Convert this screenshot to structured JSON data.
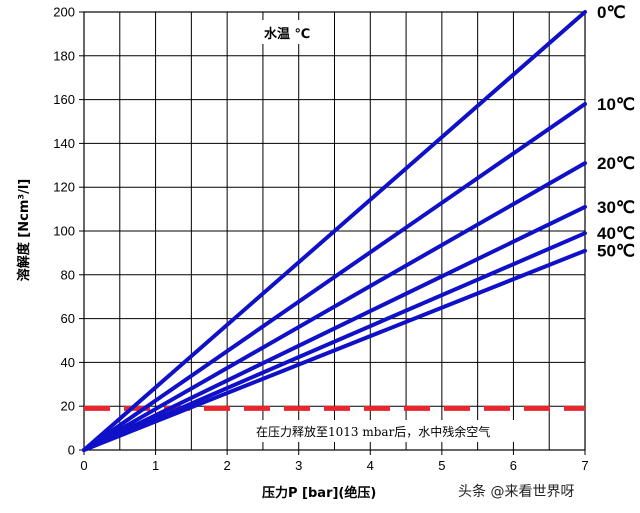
{
  "chart_data": {
    "type": "line",
    "xlabel": "压力P [bar](绝压)",
    "ylabel": "溶解度 [Ncm³/l]",
    "xlim": [
      0,
      7
    ],
    "ylim": [
      0,
      200
    ],
    "x_ticks": [
      "0",
      "1",
      "2",
      "3",
      "4",
      "5",
      "6",
      "7"
    ],
    "y_ticks": [
      "0",
      "20",
      "40",
      "60",
      "80",
      "100",
      "120",
      "140",
      "160",
      "180",
      "200"
    ],
    "grid": true,
    "legend_title": "水温 ℃",
    "series": [
      {
        "name": "0℃",
        "x": [
          0,
          7
        ],
        "y": [
          0,
          200
        ]
      },
      {
        "name": "10℃",
        "x": [
          0,
          7
        ],
        "y": [
          0,
          158
        ]
      },
      {
        "name": "20℃",
        "x": [
          0,
          7
        ],
        "y": [
          0,
          131
        ]
      },
      {
        "name": "30℃",
        "x": [
          0,
          7
        ],
        "y": [
          0,
          111
        ]
      },
      {
        "name": "40℃",
        "x": [
          0,
          7
        ],
        "y": [
          0,
          99
        ]
      },
      {
        "name": "50℃",
        "x": [
          0,
          7
        ],
        "y": [
          0,
          91
        ]
      }
    ],
    "reference_line": {
      "y": 19,
      "label": "在压力释放至1013 mbar后，水中残余空气",
      "color": "#e8262b"
    },
    "line_color": "#1010c8"
  },
  "watermark": "头条 @来看世界呀"
}
